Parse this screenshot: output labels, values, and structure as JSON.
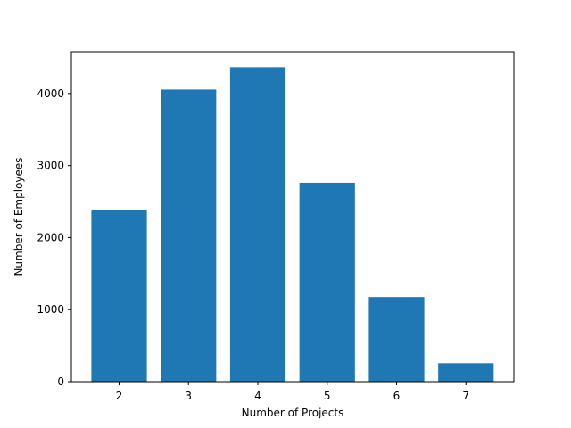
{
  "chart_data": {
    "type": "bar",
    "xlabel": "Number of Projects",
    "ylabel": "Number of Employees",
    "categories": [
      "2",
      "3",
      "4",
      "5",
      "6",
      "7"
    ],
    "values": [
      2388,
      4055,
      4365,
      2761,
      1174,
      256
    ],
    "bar_color": "#1f77b4",
    "ylim": [
      0,
      4580
    ],
    "yticks": [
      0,
      1000,
      2000,
      3000,
      4000
    ],
    "ytick_labels": [
      "0",
      "1000",
      "2000",
      "3000",
      "4000"
    ],
    "grid": false,
    "legend": "none"
  }
}
